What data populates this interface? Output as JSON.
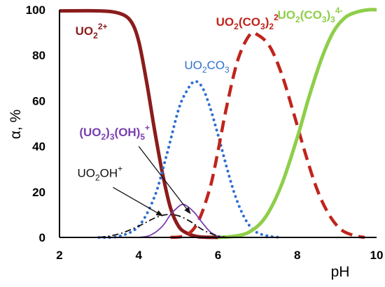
{
  "chart_data": {
    "type": "line",
    "xlabel": "pH",
    "ylabel": "α, %",
    "xlim": [
      2,
      10
    ],
    "ylim": [
      0,
      100
    ],
    "xticks": [
      "2",
      "4",
      "6",
      "8",
      "10"
    ],
    "yticks": [
      "0",
      "20",
      "40",
      "60",
      "80",
      "100"
    ],
    "grid": false,
    "series": [
      {
        "key": "uo2",
        "color": "#8b1c1c",
        "style": "solid-thick",
        "label": {
          "base": "UO",
          "parts": [
            [
              "sub",
              "2"
            ],
            [
              "sup",
              "2+"
            ]
          ]
        },
        "points": [
          [
            2.0,
            99.5
          ],
          [
            3.0,
            99.5
          ],
          [
            3.5,
            98.5
          ],
          [
            3.8,
            95
          ],
          [
            4.0,
            86
          ],
          [
            4.2,
            68
          ],
          [
            4.4,
            47
          ],
          [
            4.6,
            28
          ],
          [
            4.8,
            13
          ],
          [
            5.0,
            5
          ],
          [
            5.2,
            2
          ],
          [
            5.5,
            0.3
          ],
          [
            6.0,
            0
          ]
        ]
      },
      {
        "key": "uo2co3",
        "color": "#2e6fd0",
        "style": "dotted",
        "label": {
          "base": "UO",
          "parts": [
            [
              "sub",
              "2"
            ],
            [
              "txt",
              "CO"
            ],
            [
              "sub",
              "3"
            ]
          ]
        },
        "points": [
          [
            3.0,
            0
          ],
          [
            3.5,
            0.5
          ],
          [
            4.0,
            5
          ],
          [
            4.4,
            18
          ],
          [
            4.7,
            36
          ],
          [
            5.0,
            56
          ],
          [
            5.2,
            64
          ],
          [
            5.4,
            68.5
          ],
          [
            5.6,
            66
          ],
          [
            5.8,
            57
          ],
          [
            6.0,
            45
          ],
          [
            6.2,
            32
          ],
          [
            6.4,
            20
          ],
          [
            6.6,
            11
          ],
          [
            6.8,
            5
          ],
          [
            7.0,
            2
          ],
          [
            7.3,
            0.5
          ],
          [
            7.6,
            0
          ]
        ]
      },
      {
        "key": "uo2co32",
        "color": "#c0241c",
        "style": "dashed-thick",
        "label": {
          "base": "UO",
          "parts": [
            [
              "sub",
              "2"
            ],
            [
              "txt",
              "(CO"
            ],
            [
              "sub",
              "3"
            ],
            [
              "txt",
              ")"
            ],
            [
              "sub",
              "2"
            ],
            [
              "sup",
              "2-"
            ]
          ]
        },
        "points": [
          [
            4.8,
            0
          ],
          [
            5.2,
            1
          ],
          [
            5.5,
            7
          ],
          [
            5.8,
            22
          ],
          [
            6.0,
            38
          ],
          [
            6.2,
            56
          ],
          [
            6.5,
            78
          ],
          [
            6.8,
            89
          ],
          [
            7.0,
            89
          ],
          [
            7.3,
            84
          ],
          [
            7.6,
            72
          ],
          [
            7.9,
            55
          ],
          [
            8.2,
            37
          ],
          [
            8.5,
            21
          ],
          [
            8.8,
            10
          ],
          [
            9.1,
            3.5
          ],
          [
            9.4,
            1
          ],
          [
            9.7,
            0
          ]
        ]
      },
      {
        "key": "uo2co33",
        "color": "#8fce4a",
        "style": "solid-thick",
        "label": {
          "base": "UO",
          "parts": [
            [
              "sub",
              "2"
            ],
            [
              "txt",
              "(CO"
            ],
            [
              "sub",
              "3"
            ],
            [
              "txt",
              ")"
            ],
            [
              "sub",
              "3"
            ],
            [
              "sup",
              "4-"
            ]
          ]
        },
        "points": [
          [
            6.0,
            0
          ],
          [
            6.4,
            0.5
          ],
          [
            6.8,
            2.5
          ],
          [
            7.2,
            9
          ],
          [
            7.6,
            23
          ],
          [
            8.0,
            44
          ],
          [
            8.3,
            62
          ],
          [
            8.6,
            78
          ],
          [
            8.9,
            90
          ],
          [
            9.2,
            96.5
          ],
          [
            9.5,
            99
          ],
          [
            9.8,
            100
          ],
          [
            10.0,
            100
          ]
        ]
      },
      {
        "key": "uo23oh5",
        "color": "#7a3fb0",
        "style": "solid-thin",
        "label": {
          "base": "(UO",
          "parts": [
            [
              "sub",
              "2"
            ],
            [
              "txt",
              ")"
            ],
            [
              "sub",
              "3"
            ],
            [
              "txt",
              "(OH)"
            ],
            [
              "sub",
              "5"
            ],
            [
              "sup",
              "+"
            ]
          ]
        },
        "points": [
          [
            4.0,
            0
          ],
          [
            4.3,
            1
          ],
          [
            4.6,
            5
          ],
          [
            4.8,
            10
          ],
          [
            5.0,
            13.5
          ],
          [
            5.1,
            14.5
          ],
          [
            5.2,
            14
          ],
          [
            5.4,
            11
          ],
          [
            5.6,
            6.5
          ],
          [
            5.8,
            2.5
          ],
          [
            6.0,
            0.5
          ],
          [
            6.2,
            0
          ]
        ]
      },
      {
        "key": "uo2oh",
        "color": "#111111",
        "style": "dash-dot",
        "label": {
          "base": "UO",
          "parts": [
            [
              "sub",
              "2"
            ],
            [
              "txt",
              "OH"
            ],
            [
              "sup",
              "+"
            ]
          ]
        },
        "points": [
          [
            3.0,
            0
          ],
          [
            3.5,
            1.5
          ],
          [
            4.0,
            5
          ],
          [
            4.4,
            8.5
          ],
          [
            4.7,
            10
          ],
          [
            5.0,
            9.5
          ],
          [
            5.3,
            7
          ],
          [
            5.6,
            3.5
          ],
          [
            5.9,
            1.2
          ],
          [
            6.2,
            0
          ]
        ]
      }
    ],
    "annotations": [
      {
        "series": "uo2",
        "bold": true,
        "text_color": "#8b1c1c",
        "label_at": [
          2.4,
          89
        ],
        "arrow": null
      },
      {
        "series": "uo2co3",
        "bold": false,
        "text_color": "#2e6fd0",
        "label_at": [
          5.15,
          74
        ],
        "arrow": null
      },
      {
        "series": "uo2co32",
        "bold": true,
        "text_color": "#c0241c",
        "label_at": [
          5.95,
          93
        ],
        "arrow": null
      },
      {
        "series": "uo2co33",
        "bold": true,
        "text_color": "#8fce4a",
        "label_at": [
          7.5,
          96
        ],
        "arrow": null
      },
      {
        "series": "uo23oh5",
        "bold": true,
        "text_color": "#7a3fb0",
        "label_at": [
          2.5,
          44.5
        ],
        "arrow": {
          "from": [
            4.0,
            40
          ],
          "to": [
            5.3,
            10.5
          ]
        }
      },
      {
        "series": "uo2oh",
        "bold": false,
        "text_color": "#111111",
        "label_at": [
          2.45,
          26.5
        ],
        "arrow": {
          "from": [
            3.35,
            22
          ],
          "to": [
            4.6,
            9.5
          ]
        }
      }
    ]
  }
}
